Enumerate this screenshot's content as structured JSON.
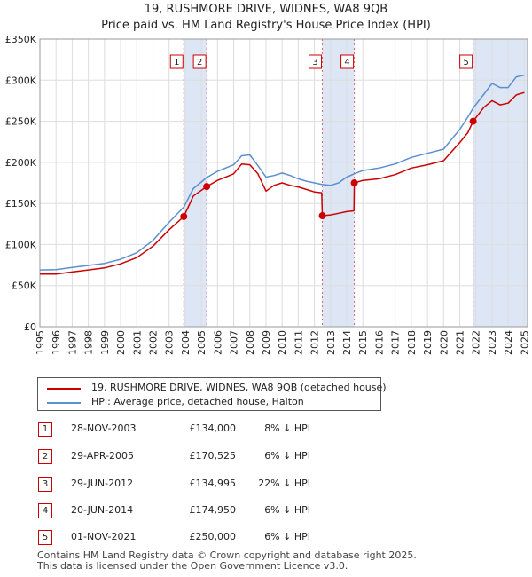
{
  "chart_data": {
    "type": "line",
    "title": "19, RUSHMORE DRIVE, WIDNES, WA8 9QB",
    "subtitle": "Price paid vs. HM Land Registry's House Price Index (HPI)",
    "xlim": [
      1995,
      2025.2
    ],
    "ylim": [
      0,
      350000
    ],
    "y_ticks": [
      0,
      50000,
      100000,
      150000,
      200000,
      250000,
      300000,
      350000
    ],
    "y_tick_labels": [
      "£0",
      "£50K",
      "£100K",
      "£150K",
      "£200K",
      "£250K",
      "£300K",
      "£350K"
    ],
    "x_ticks": [
      "1995",
      "1996",
      "1997",
      "1998",
      "1999",
      "2000",
      "2001",
      "2002",
      "2003",
      "2004",
      "2005",
      "2006",
      "2007",
      "2008",
      "2009",
      "2010",
      "2011",
      "2012",
      "2013",
      "2014",
      "2015",
      "2016",
      "2017",
      "2018",
      "2019",
      "2020",
      "2021",
      "2022",
      "2023",
      "2024",
      "2025"
    ],
    "colors": {
      "property": "#cc0000",
      "hpi": "#5b8fd0",
      "shade": "#dde6f5",
      "marker_line": "#e06060"
    },
    "series": [
      {
        "name": "19, RUSHMORE DRIVE, WIDNES, WA8 9QB (detached house)",
        "key": "property",
        "points": [
          [
            1995.0,
            64000
          ],
          [
            1996.0,
            64000
          ],
          [
            1997.0,
            66500
          ],
          [
            1998.0,
            69000
          ],
          [
            1999.0,
            71500
          ],
          [
            2000.0,
            76500
          ],
          [
            2001.0,
            84000
          ],
          [
            2002.0,
            98000
          ],
          [
            2003.0,
            118000
          ],
          [
            2003.91,
            134000
          ],
          [
            2004.5,
            159000
          ],
          [
            2005.33,
            170525
          ],
          [
            2006.0,
            178000
          ],
          [
            2007.0,
            186000
          ],
          [
            2007.5,
            198000
          ],
          [
            2008.0,
            197000
          ],
          [
            2008.5,
            186000
          ],
          [
            2009.0,
            165000
          ],
          [
            2009.5,
            172000
          ],
          [
            2010.0,
            175000
          ],
          [
            2010.5,
            172000
          ],
          [
            2011.0,
            170000
          ],
          [
            2011.5,
            167000
          ],
          [
            2012.0,
            164000
          ],
          [
            2012.45,
            163000
          ],
          [
            2012.49,
            134995
          ],
          [
            2013.0,
            136000
          ],
          [
            2013.5,
            138000
          ],
          [
            2014.0,
            140000
          ],
          [
            2014.45,
            141000
          ],
          [
            2014.47,
            174950
          ],
          [
            2015.0,
            178000
          ],
          [
            2016.0,
            180000
          ],
          [
            2017.0,
            185000
          ],
          [
            2018.0,
            193000
          ],
          [
            2019.0,
            197000
          ],
          [
            2020.0,
            202000
          ],
          [
            2020.5,
            213000
          ],
          [
            2021.0,
            224000
          ],
          [
            2021.5,
            236000
          ],
          [
            2021.83,
            250000
          ],
          [
            2022.5,
            267000
          ],
          [
            2023.0,
            275000
          ],
          [
            2023.5,
            270000
          ],
          [
            2024.0,
            272000
          ],
          [
            2024.5,
            282000
          ],
          [
            2025.0,
            285000
          ]
        ]
      },
      {
        "name": "HPI: Average price, detached house, Halton",
        "key": "hpi",
        "points": [
          [
            1995.0,
            69000
          ],
          [
            1996.0,
            69500
          ],
          [
            1997.0,
            72000
          ],
          [
            1998.0,
            74500
          ],
          [
            1999.0,
            77000
          ],
          [
            2000.0,
            82000
          ],
          [
            2001.0,
            90000
          ],
          [
            2002.0,
            105000
          ],
          [
            2003.0,
            127000
          ],
          [
            2003.91,
            145500
          ],
          [
            2004.5,
            168000
          ],
          [
            2005.33,
            181500
          ],
          [
            2006.0,
            189000
          ],
          [
            2007.0,
            197000
          ],
          [
            2007.5,
            208000
          ],
          [
            2008.0,
            209000
          ],
          [
            2008.5,
            196000
          ],
          [
            2009.0,
            182000
          ],
          [
            2009.5,
            184000
          ],
          [
            2010.0,
            187000
          ],
          [
            2010.5,
            184000
          ],
          [
            2011.0,
            180000
          ],
          [
            2011.5,
            177000
          ],
          [
            2012.0,
            175000
          ],
          [
            2012.49,
            173000
          ],
          [
            2013.0,
            172000
          ],
          [
            2013.5,
            175000
          ],
          [
            2014.0,
            182000
          ],
          [
            2014.47,
            186000
          ],
          [
            2015.0,
            190000
          ],
          [
            2016.0,
            193000
          ],
          [
            2017.0,
            198000
          ],
          [
            2018.0,
            206000
          ],
          [
            2019.0,
            211000
          ],
          [
            2020.0,
            216000
          ],
          [
            2020.5,
            228000
          ],
          [
            2021.0,
            240000
          ],
          [
            2021.5,
            255000
          ],
          [
            2021.83,
            266000
          ],
          [
            2022.5,
            283000
          ],
          [
            2023.0,
            296000
          ],
          [
            2023.5,
            291000
          ],
          [
            2024.0,
            291000
          ],
          [
            2024.5,
            304000
          ],
          [
            2025.0,
            306000
          ]
        ]
      }
    ],
    "sales": [
      {
        "num": "1",
        "x": 2003.91,
        "y": 134000
      },
      {
        "num": "2",
        "x": 2005.33,
        "y": 170525
      },
      {
        "num": "3",
        "x": 2012.49,
        "y": 134995
      },
      {
        "num": "4",
        "x": 2014.47,
        "y": 174950
      },
      {
        "num": "5",
        "x": 2021.83,
        "y": 250000
      }
    ],
    "shaded_ranges": [
      [
        2003.91,
        2005.33
      ],
      [
        2012.49,
        2014.47
      ],
      [
        2021.83,
        2025.2
      ]
    ]
  },
  "legend": {
    "property_label": "19, RUSHMORE DRIVE, WIDNES, WA8 9QB (detached house)",
    "hpi_label": "HPI: Average price, detached house, Halton"
  },
  "transactions": [
    {
      "num": "1",
      "date": "28-NOV-2003",
      "price": "£134,000",
      "hpi": "8% ↓ HPI"
    },
    {
      "num": "2",
      "date": "29-APR-2005",
      "price": "£170,525",
      "hpi": "6% ↓ HPI"
    },
    {
      "num": "3",
      "date": "29-JUN-2012",
      "price": "£134,995",
      "hpi": "22% ↓ HPI"
    },
    {
      "num": "4",
      "date": "20-JUN-2014",
      "price": "£174,950",
      "hpi": "6% ↓ HPI"
    },
    {
      "num": "5",
      "date": "01-NOV-2021",
      "price": "£250,000",
      "hpi": "6% ↓ HPI"
    }
  ],
  "footer": {
    "line1": "Contains HM Land Registry data © Crown copyright and database right 2025.",
    "line2": "This data is licensed under the Open Government Licence v3.0."
  }
}
